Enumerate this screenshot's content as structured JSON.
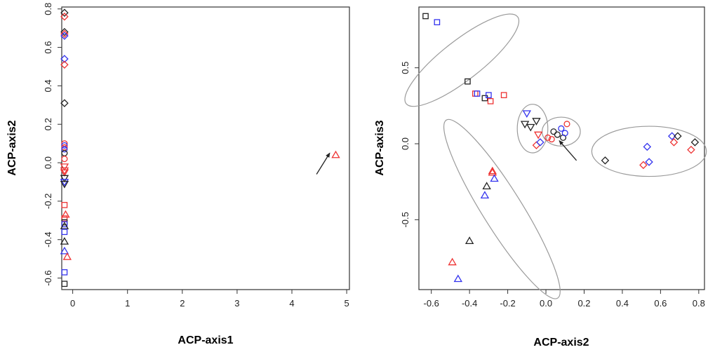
{
  "chart_data": [
    {
      "type": "scatter",
      "xlabel": "ACP-axis1",
      "ylabel": "ACP-axis2",
      "xlim": [
        -0.2,
        5.05
      ],
      "ylim": [
        -0.66,
        0.81
      ],
      "xticks": [
        0,
        1,
        2,
        3,
        4,
        5
      ],
      "yticks": [
        -0.6,
        -0.4,
        -0.2,
        0.0,
        0.2,
        0.4,
        0.6,
        0.8
      ],
      "xtick_labels": [
        "0",
        "1",
        "2",
        "3",
        "4",
        "5"
      ],
      "ytick_labels": [
        "-0.6",
        "-0.4",
        "-0.2",
        "0.0",
        "0.2",
        "0.4",
        "0.6",
        "0.8"
      ],
      "colors": {
        "black": "#222222",
        "red": "#ee3333",
        "blue": "#3333ee"
      },
      "points": [
        {
          "x": -0.15,
          "y": 0.78,
          "color": "black",
          "marker": "diamond"
        },
        {
          "x": -0.15,
          "y": 0.76,
          "color": "red",
          "marker": "diamond"
        },
        {
          "x": -0.15,
          "y": 0.68,
          "color": "black",
          "marker": "diamond"
        },
        {
          "x": -0.15,
          "y": 0.67,
          "color": "red",
          "marker": "diamond"
        },
        {
          "x": -0.15,
          "y": 0.66,
          "color": "blue",
          "marker": "diamond"
        },
        {
          "x": -0.15,
          "y": 0.54,
          "color": "blue",
          "marker": "diamond"
        },
        {
          "x": -0.15,
          "y": 0.51,
          "color": "red",
          "marker": "diamond"
        },
        {
          "x": -0.15,
          "y": 0.31,
          "color": "black",
          "marker": "diamond"
        },
        {
          "x": -0.15,
          "y": 0.1,
          "color": "red",
          "marker": "circle"
        },
        {
          "x": -0.15,
          "y": 0.09,
          "color": "blue",
          "marker": "circle"
        },
        {
          "x": -0.15,
          "y": 0.08,
          "color": "red",
          "marker": "circle"
        },
        {
          "x": -0.15,
          "y": 0.07,
          "color": "blue",
          "marker": "circle"
        },
        {
          "x": -0.15,
          "y": 0.05,
          "color": "black",
          "marker": "circle"
        },
        {
          "x": -0.15,
          "y": 0.02,
          "color": "red",
          "marker": "circle"
        },
        {
          "x": -0.15,
          "y": -0.02,
          "color": "red",
          "marker": "triangle-down"
        },
        {
          "x": -0.15,
          "y": -0.04,
          "color": "red",
          "marker": "triangle-down"
        },
        {
          "x": -0.15,
          "y": -0.05,
          "color": "red",
          "marker": "triangle-down"
        },
        {
          "x": -0.15,
          "y": -0.08,
          "color": "black",
          "marker": "triangle-down"
        },
        {
          "x": -0.15,
          "y": -0.1,
          "color": "blue",
          "marker": "triangle-down"
        },
        {
          "x": -0.15,
          "y": -0.11,
          "color": "black",
          "marker": "triangle-down"
        },
        {
          "x": -0.15,
          "y": -0.22,
          "color": "red",
          "marker": "square"
        },
        {
          "x": -0.13,
          "y": -0.27,
          "color": "red",
          "marker": "triangle"
        },
        {
          "x": -0.15,
          "y": -0.29,
          "color": "red",
          "marker": "square"
        },
        {
          "x": -0.15,
          "y": -0.31,
          "color": "black",
          "marker": "square"
        },
        {
          "x": -0.15,
          "y": -0.32,
          "color": "blue",
          "marker": "square"
        },
        {
          "x": -0.15,
          "y": -0.33,
          "color": "black",
          "marker": "triangle"
        },
        {
          "x": -0.15,
          "y": -0.36,
          "color": "blue",
          "marker": "square"
        },
        {
          "x": -0.15,
          "y": -0.41,
          "color": "black",
          "marker": "triangle"
        },
        {
          "x": -0.15,
          "y": -0.46,
          "color": "blue",
          "marker": "triangle"
        },
        {
          "x": -0.1,
          "y": -0.49,
          "color": "red",
          "marker": "triangle"
        },
        {
          "x": -0.15,
          "y": -0.57,
          "color": "blue",
          "marker": "square"
        },
        {
          "x": -0.15,
          "y": -0.63,
          "color": "black",
          "marker": "square"
        },
        {
          "x": 4.8,
          "y": 0.04,
          "color": "red",
          "marker": "triangle"
        }
      ],
      "arrows": [
        {
          "from": [
            4.45,
            -0.06
          ],
          "to": [
            4.69,
            0.05
          ]
        }
      ]
    },
    {
      "type": "scatter",
      "xlabel": "ACP-axis2",
      "ylabel": "ACP-axis3",
      "xlim": [
        -0.665,
        0.83
      ],
      "ylim": [
        -0.96,
        0.9
      ],
      "xticks": [
        -0.6,
        -0.4,
        -0.2,
        0.0,
        0.2,
        0.4,
        0.6,
        0.8
      ],
      "yticks": [
        -0.5,
        0.0,
        0.5
      ],
      "xtick_labels": [
        "-0.6",
        "-0.4",
        "-0.2",
        "0.0",
        "0.2",
        "0.4",
        "0.6",
        "0.8"
      ],
      "ytick_labels": [
        "-0.5",
        "0.0",
        "0.5"
      ],
      "colors": {
        "black": "#222222",
        "red": "#ee3333",
        "blue": "#3333ee"
      },
      "points": [
        {
          "x": -0.63,
          "y": 0.84,
          "color": "black",
          "marker": "square"
        },
        {
          "x": -0.57,
          "y": 0.8,
          "color": "blue",
          "marker": "square"
        },
        {
          "x": -0.41,
          "y": 0.41,
          "color": "black",
          "marker": "square"
        },
        {
          "x": -0.37,
          "y": 0.33,
          "color": "red",
          "marker": "square"
        },
        {
          "x": -0.36,
          "y": 0.33,
          "color": "blue",
          "marker": "square"
        },
        {
          "x": -0.32,
          "y": 0.3,
          "color": "black",
          "marker": "square"
        },
        {
          "x": -0.3,
          "y": 0.32,
          "color": "blue",
          "marker": "square"
        },
        {
          "x": -0.29,
          "y": 0.28,
          "color": "red",
          "marker": "square"
        },
        {
          "x": -0.22,
          "y": 0.32,
          "color": "red",
          "marker": "square"
        },
        {
          "x": -0.1,
          "y": 0.2,
          "color": "blue",
          "marker": "triangle-down"
        },
        {
          "x": -0.11,
          "y": 0.13,
          "color": "black",
          "marker": "triangle-down"
        },
        {
          "x": -0.08,
          "y": 0.11,
          "color": "black",
          "marker": "triangle-down"
        },
        {
          "x": -0.05,
          "y": 0.15,
          "color": "black",
          "marker": "triangle-down"
        },
        {
          "x": -0.04,
          "y": 0.06,
          "color": "red",
          "marker": "triangle-down"
        },
        {
          "x": -0.05,
          "y": -0.01,
          "color": "red",
          "marker": "diamond"
        },
        {
          "x": -0.03,
          "y": 0.01,
          "color": "blue",
          "marker": "diamond"
        },
        {
          "x": 0.01,
          "y": 0.04,
          "color": "red",
          "marker": "circle"
        },
        {
          "x": 0.03,
          "y": 0.03,
          "color": "red",
          "marker": "circle"
        },
        {
          "x": 0.04,
          "y": 0.08,
          "color": "black",
          "marker": "circle"
        },
        {
          "x": 0.06,
          "y": 0.06,
          "color": "black",
          "marker": "circle"
        },
        {
          "x": 0.08,
          "y": 0.1,
          "color": "blue",
          "marker": "circle"
        },
        {
          "x": 0.09,
          "y": 0.04,
          "color": "black",
          "marker": "circle"
        },
        {
          "x": 0.1,
          "y": 0.07,
          "color": "blue",
          "marker": "circle"
        },
        {
          "x": 0.11,
          "y": 0.13,
          "color": "red",
          "marker": "circle"
        },
        {
          "x": 0.31,
          "y": -0.11,
          "color": "black",
          "marker": "diamond"
        },
        {
          "x": 0.51,
          "y": -0.14,
          "color": "red",
          "marker": "diamond"
        },
        {
          "x": 0.53,
          "y": -0.02,
          "color": "blue",
          "marker": "diamond"
        },
        {
          "x": 0.54,
          "y": -0.12,
          "color": "blue",
          "marker": "diamond"
        },
        {
          "x": 0.66,
          "y": 0.05,
          "color": "blue",
          "marker": "diamond"
        },
        {
          "x": 0.67,
          "y": 0.01,
          "color": "red",
          "marker": "diamond"
        },
        {
          "x": 0.69,
          "y": 0.05,
          "color": "black",
          "marker": "diamond"
        },
        {
          "x": 0.76,
          "y": -0.04,
          "color": "red",
          "marker": "diamond"
        },
        {
          "x": 0.78,
          "y": 0.01,
          "color": "black",
          "marker": "diamond"
        },
        {
          "x": -0.28,
          "y": -0.18,
          "color": "red",
          "marker": "triangle"
        },
        {
          "x": -0.28,
          "y": -0.19,
          "color": "red",
          "marker": "triangle"
        },
        {
          "x": -0.27,
          "y": -0.23,
          "color": "blue",
          "marker": "triangle"
        },
        {
          "x": -0.31,
          "y": -0.28,
          "color": "black",
          "marker": "triangle"
        },
        {
          "x": -0.32,
          "y": -0.34,
          "color": "blue",
          "marker": "triangle"
        },
        {
          "x": -0.4,
          "y": -0.64,
          "color": "black",
          "marker": "triangle"
        },
        {
          "x": -0.49,
          "y": -0.78,
          "color": "red",
          "marker": "triangle"
        },
        {
          "x": -0.46,
          "y": -0.89,
          "color": "blue",
          "marker": "triangle"
        }
      ],
      "ellipses": [
        {
          "cx": -0.44,
          "cy": 0.55,
          "rx": 0.37,
          "ry": 0.13,
          "angle": 38
        },
        {
          "cx": -0.07,
          "cy": 0.1,
          "rx": 0.08,
          "ry": 0.16,
          "angle": 0
        },
        {
          "cx": 0.08,
          "cy": 0.08,
          "rx": 0.1,
          "ry": 0.095,
          "angle": 0
        },
        {
          "cx": 0.54,
          "cy": -0.05,
          "rx": 0.3,
          "ry": 0.165,
          "angle": 0
        },
        {
          "cx": -0.23,
          "cy": -0.43,
          "rx": 0.55,
          "ry": 0.13,
          "angle": -58
        }
      ],
      "arrows": [
        {
          "from": [
            0.16,
            -0.11
          ],
          "to": [
            0.07,
            0.02
          ]
        }
      ]
    }
  ]
}
